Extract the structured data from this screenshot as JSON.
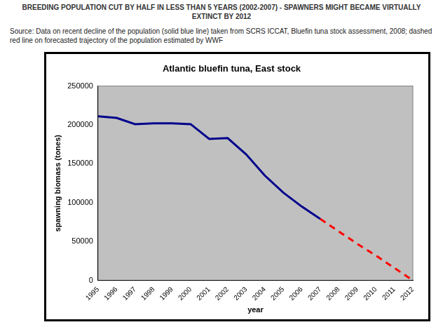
{
  "heading": "BREEDING POPULATION CUT BY HALF IN LESS THAN 5 YEARS (2002-2007) - SPAWNERS MIGHT BECAME VIRTUALLY EXTINCT BY 2012",
  "source": "Source: Data on recent decline of the population (solid blue line) taken from SCRS ICCAT, Bluefin tuna stock assessment, 2008; dashed red line on forecasted trajectory of the population estimated by WWF",
  "chart_data": {
    "type": "line",
    "title": "Atlantic bluefin tuna, East stock",
    "x_label": "year",
    "y_label": "spawning biomass (tones)",
    "categories": [
      "1995",
      "1996",
      "1997",
      "1998",
      "1999",
      "2000",
      "2001",
      "2002",
      "2003",
      "2004",
      "2005",
      "2006",
      "2007",
      "2008",
      "2009",
      "2010",
      "2011",
      "2012"
    ],
    "series": [
      {
        "color": "#00008b",
        "line_style": "solid",
        "values": [
          211000,
          209000,
          201000,
          202000,
          202000,
          201000,
          182000,
          183000,
          162000,
          135000,
          113000,
          95000,
          79000,
          null,
          null,
          null,
          null,
          null
        ]
      },
      {
        "color": "#ff0000",
        "line_style": "dashed",
        "values": [
          null,
          null,
          null,
          null,
          null,
          null,
          null,
          null,
          null,
          null,
          null,
          null,
          79000,
          63000,
          47000,
          32000,
          16000,
          0
        ]
      }
    ],
    "ylim": [
      0,
      250000
    ],
    "yticks": [
      0,
      50000,
      100000,
      150000,
      200000,
      250000
    ],
    "grid": false
  }
}
